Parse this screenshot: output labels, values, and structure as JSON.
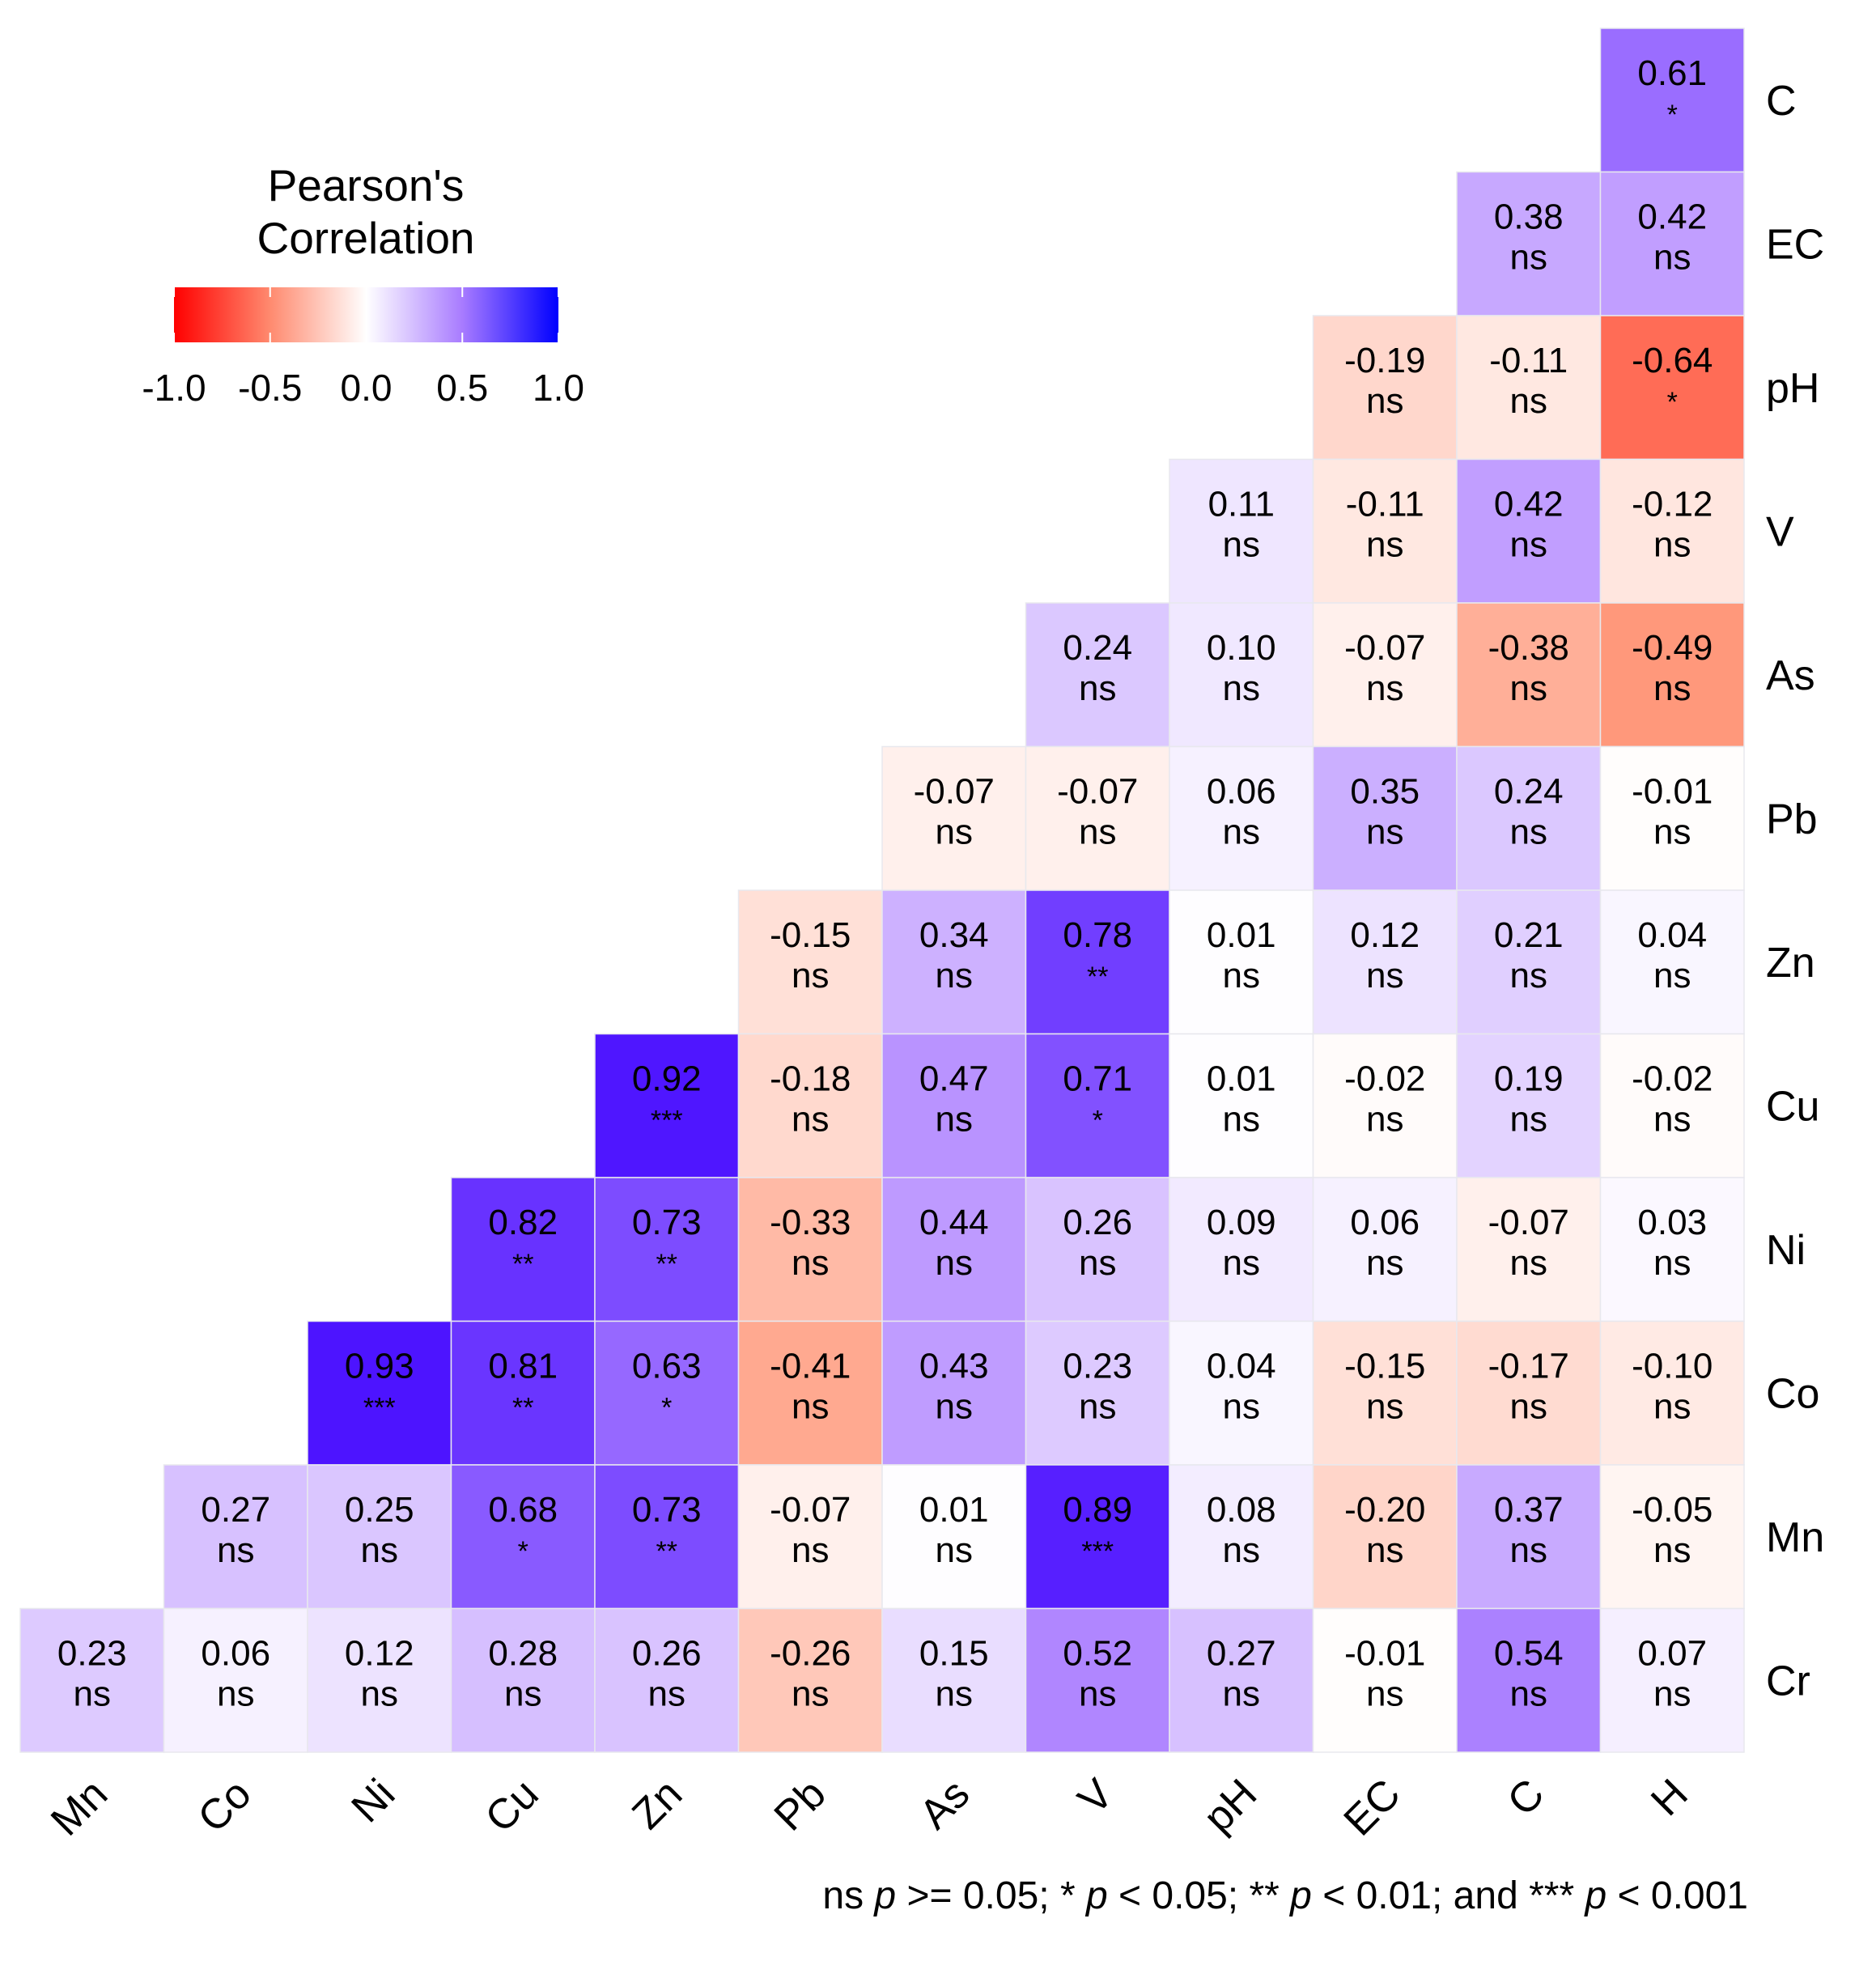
{
  "chart_data": {
    "type": "heatmap",
    "subtype": "lower-triangle correlation matrix",
    "legend": {
      "title": [
        "Pearson's",
        "Correlation"
      ],
      "ticks": [
        "-1.0",
        "-0.5",
        "0.0",
        "0.5",
        "1.0"
      ],
      "range": [
        -1,
        1
      ],
      "colors": {
        "low": "#ff0000",
        "mid": "#ffffff",
        "high": "#0000ff"
      },
      "placement": "top-left"
    },
    "x_labels": [
      "Mn",
      "Co",
      "Ni",
      "Cu",
      "Zn",
      "Pb",
      "As",
      "V",
      "pH",
      "EC",
      "C",
      "H"
    ],
    "y_labels": [
      "C",
      "EC",
      "pH",
      "V",
      "As",
      "Pb",
      "Zn",
      "Cu",
      "Ni",
      "Co",
      "Mn",
      "Cr"
    ],
    "rows": [
      {
        "values": [
          0.61
        ],
        "labels": [
          "0.61"
        ],
        "sig": [
          "*"
        ]
      },
      {
        "values": [
          0.38,
          0.42
        ],
        "labels": [
          "0.38",
          "0.42"
        ],
        "sig": [
          "ns",
          "ns"
        ]
      },
      {
        "values": [
          -0.19,
          -0.11,
          -0.64
        ],
        "labels": [
          "-0.19",
          "-0.11",
          "-0.64"
        ],
        "sig": [
          "ns",
          "ns",
          "*"
        ]
      },
      {
        "values": [
          0.11,
          -0.11,
          0.42,
          -0.12
        ],
        "labels": [
          "0.11",
          "-0.11",
          "0.42",
          "-0.12"
        ],
        "sig": [
          "ns",
          "ns",
          "ns",
          "ns"
        ]
      },
      {
        "values": [
          0.24,
          0.1,
          -0.07,
          -0.38,
          -0.49
        ],
        "labels": [
          "0.24",
          "0.10",
          "-0.07",
          "-0.38",
          "-0.49"
        ],
        "sig": [
          "ns",
          "ns",
          "ns",
          "ns",
          "ns"
        ]
      },
      {
        "values": [
          -0.07,
          -0.07,
          0.06,
          0.35,
          0.24,
          -0.01
        ],
        "labels": [
          "-0.07",
          "-0.07",
          "0.06",
          "0.35",
          "0.24",
          "-0.01"
        ],
        "sig": [
          "ns",
          "ns",
          "ns",
          "ns",
          "ns",
          "ns"
        ]
      },
      {
        "values": [
          -0.15,
          0.34,
          0.78,
          0.01,
          0.12,
          0.21,
          0.04
        ],
        "labels": [
          "-0.15",
          "0.34",
          "0.78",
          "0.01",
          "0.12",
          "0.21",
          "0.04"
        ],
        "sig": [
          "ns",
          "ns",
          "**",
          "ns",
          "ns",
          "ns",
          "ns"
        ]
      },
      {
        "values": [
          0.92,
          -0.18,
          0.47,
          0.71,
          0.01,
          -0.02,
          0.19,
          -0.02
        ],
        "labels": [
          "0.92",
          "-0.18",
          "0.47",
          "0.71",
          "0.01",
          "-0.02",
          "0.19",
          "-0.02"
        ],
        "sig": [
          "***",
          "ns",
          "ns",
          "*",
          "ns",
          "ns",
          "ns",
          "ns"
        ]
      },
      {
        "values": [
          0.82,
          0.73,
          -0.33,
          0.44,
          0.26,
          0.09,
          0.06,
          -0.07,
          0.03
        ],
        "labels": [
          "0.82",
          "0.73",
          "-0.33",
          "0.44",
          "0.26",
          "0.09",
          "0.06",
          "-0.07",
          "0.03"
        ],
        "sig": [
          "**",
          "**",
          "ns",
          "ns",
          "ns",
          "ns",
          "ns",
          "ns",
          "ns"
        ]
      },
      {
        "values": [
          0.93,
          0.81,
          0.63,
          -0.41,
          0.43,
          0.23,
          0.04,
          -0.15,
          -0.17,
          -0.1
        ],
        "labels": [
          "0.93",
          "0.81",
          "0.63",
          "-0.41",
          "0.43",
          "0.23",
          "0.04",
          "-0.15",
          "-0.17",
          "-0.10"
        ],
        "sig": [
          "***",
          "**",
          "*",
          "ns",
          "ns",
          "ns",
          "ns",
          "ns",
          "ns",
          "ns"
        ]
      },
      {
        "values": [
          0.27,
          0.25,
          0.68,
          0.73,
          -0.07,
          0.01,
          0.89,
          0.08,
          -0.2,
          0.37,
          -0.05
        ],
        "labels": [
          "0.27",
          "0.25",
          "0.68",
          "0.73",
          "-0.07",
          "0.01",
          "0.89",
          "0.08",
          "-0.20",
          "0.37",
          "-0.05"
        ],
        "sig": [
          "ns",
          "ns",
          "*",
          "**",
          "ns",
          "ns",
          "***",
          "ns",
          "ns",
          "ns",
          "ns"
        ]
      },
      {
        "values": [
          0.23,
          0.06,
          0.12,
          0.28,
          0.26,
          -0.26,
          0.15,
          0.52,
          0.27,
          -0.01,
          0.54,
          0.07
        ],
        "labels": [
          "0.23",
          "0.06",
          "0.12",
          "0.28",
          "0.26",
          "-0.26",
          "0.15",
          "0.52",
          "0.27",
          "-0.01",
          "0.54",
          "0.07"
        ],
        "sig": [
          "ns",
          "ns",
          "ns",
          "ns",
          "ns",
          "ns",
          "ns",
          "ns",
          "ns",
          "ns",
          "ns",
          "ns"
        ]
      }
    ],
    "caption": {
      "parts": [
        {
          "text": "ns ",
          "italic": false
        },
        {
          "text": "p",
          "italic": true
        },
        {
          "text": " >= 0.05; * ",
          "italic": false
        },
        {
          "text": "p",
          "italic": true
        },
        {
          "text": " < 0.05; ** ",
          "italic": false
        },
        {
          "text": "p",
          "italic": true
        },
        {
          "text": " < 0.01; and *** ",
          "italic": false
        },
        {
          "text": "p",
          "italic": true
        },
        {
          "text": " < 0.001",
          "italic": false
        }
      ]
    }
  }
}
